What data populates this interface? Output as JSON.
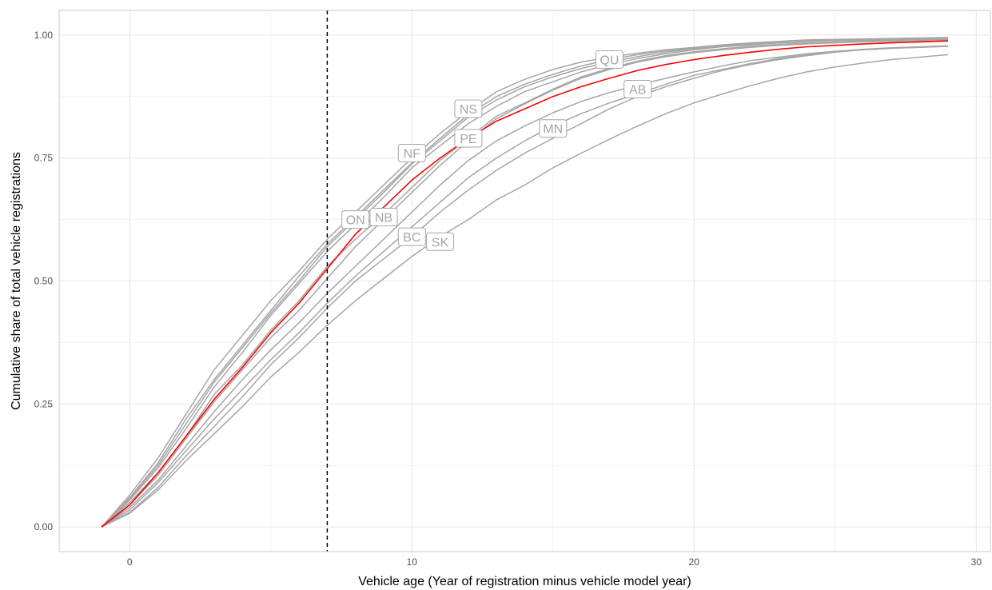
{
  "chart_data": {
    "type": "line",
    "xlabel": "Vehicle age (Year of registration minus vehicle model year)",
    "ylabel": "Cumulative share of total vehicle registrations",
    "xlim": [
      -2.5,
      30.5
    ],
    "ylim": [
      -0.05,
      1.05
    ],
    "x_ticks": [
      0,
      10,
      20,
      30
    ],
    "y_ticks": [
      0.0,
      0.25,
      0.5,
      0.75,
      1.0
    ],
    "x_tick_labels": [
      "0",
      "10",
      "20",
      "30"
    ],
    "y_tick_labels": [
      "0.00",
      "0.25",
      "0.50",
      "0.75",
      "1.00"
    ],
    "grid": true,
    "vline": {
      "x": 7,
      "style": "dashed",
      "color": "#000000"
    },
    "colors": {
      "provinces": "#a6a6a6",
      "highlight": "#ff0000"
    },
    "x": [
      -1,
      0,
      1,
      2,
      3,
      4,
      5,
      6,
      7,
      8,
      9,
      10,
      11,
      12,
      13,
      14,
      15,
      16,
      17,
      18,
      19,
      20,
      21,
      22,
      23,
      24,
      25,
      26,
      27,
      28,
      29
    ],
    "series": [
      {
        "label": "QU",
        "label_at": [
          17,
          0.95
        ],
        "values": [
          0,
          0.065,
          0.14,
          0.23,
          0.32,
          0.39,
          0.46,
          0.52,
          0.585,
          0.64,
          0.695,
          0.75,
          0.8,
          0.845,
          0.885,
          0.91,
          0.93,
          0.945,
          0.955,
          0.963,
          0.97,
          0.975,
          0.98,
          0.984,
          0.987,
          0.99,
          0.991,
          0.992,
          0.993,
          0.994,
          0.995
        ]
      },
      {
        "label": "NS",
        "label_at": [
          12,
          0.85
        ],
        "values": [
          0,
          0.06,
          0.13,
          0.22,
          0.3,
          0.37,
          0.44,
          0.51,
          0.575,
          0.63,
          0.685,
          0.74,
          0.79,
          0.838,
          0.875,
          0.9,
          0.92,
          0.937,
          0.95,
          0.96,
          0.968,
          0.974,
          0.979,
          0.983,
          0.986,
          0.988,
          0.99,
          0.991,
          0.992,
          0.993,
          0.994
        ]
      },
      {
        "label": "NF",
        "label_at": [
          10,
          0.76
        ],
        "values": [
          0,
          0.058,
          0.125,
          0.21,
          0.295,
          0.365,
          0.435,
          0.5,
          0.57,
          0.625,
          0.68,
          0.738,
          0.785,
          0.833,
          0.868,
          0.895,
          0.915,
          0.932,
          0.945,
          0.956,
          0.965,
          0.972,
          0.977,
          0.981,
          0.984,
          0.987,
          0.989,
          0.99,
          0.991,
          0.992,
          0.993
        ]
      },
      {
        "label": "ON",
        "label_at": [
          8,
          0.625
        ],
        "values": [
          0,
          0.055,
          0.12,
          0.2,
          0.285,
          0.355,
          0.43,
          0.495,
          0.56,
          0.615,
          0.67,
          0.73,
          0.775,
          0.82,
          0.855,
          0.885,
          0.905,
          0.925,
          0.94,
          0.952,
          0.962,
          0.97,
          0.976,
          0.98,
          0.984,
          0.987,
          0.989,
          0.99,
          0.991,
          0.992,
          0.993
        ]
      },
      {
        "label": "PE",
        "label_at": [
          12,
          0.79
        ],
        "values": [
          0,
          0.05,
          0.11,
          0.185,
          0.27,
          0.33,
          0.4,
          0.46,
          0.53,
          0.585,
          0.635,
          0.69,
          0.745,
          0.79,
          0.835,
          0.862,
          0.89,
          0.915,
          0.932,
          0.947,
          0.958,
          0.966,
          0.972,
          0.977,
          0.981,
          0.984,
          0.986,
          0.988,
          0.989,
          0.99,
          0.991
        ]
      },
      {
        "label": "NB",
        "label_at": [
          9,
          0.63
        ],
        "values": [
          0,
          0.045,
          0.105,
          0.18,
          0.255,
          0.32,
          0.385,
          0.44,
          0.505,
          0.57,
          0.625,
          0.68,
          0.735,
          0.785,
          0.83,
          0.86,
          0.888,
          0.912,
          0.93,
          0.945,
          0.956,
          0.964,
          0.97,
          0.975,
          0.979,
          0.982,
          0.984,
          0.986,
          0.987,
          0.988,
          0.989
        ]
      },
      {
        "label": "AB",
        "label_at": [
          18,
          0.89
        ],
        "values": [
          0,
          0.04,
          0.095,
          0.165,
          0.235,
          0.3,
          0.36,
          0.415,
          0.475,
          0.53,
          0.585,
          0.64,
          0.695,
          0.745,
          0.785,
          0.815,
          0.842,
          0.865,
          0.883,
          0.898,
          0.912,
          0.925,
          0.937,
          0.948,
          0.955,
          0.962,
          0.967,
          0.971,
          0.974,
          0.976,
          0.978
        ]
      },
      {
        "label": "MN",
        "label_at": [
          15,
          0.81
        ],
        "values": [
          0,
          0.035,
          0.09,
          0.155,
          0.22,
          0.28,
          0.34,
          0.395,
          0.455,
          0.51,
          0.56,
          0.61,
          0.66,
          0.71,
          0.75,
          0.785,
          0.815,
          0.84,
          0.862,
          0.88,
          0.9,
          0.918,
          0.93,
          0.942,
          0.952,
          0.96,
          0.966,
          0.97,
          0.973,
          0.975,
          0.977
        ]
      },
      {
        "label": "BC",
        "label_at": [
          10,
          0.59
        ],
        "values": [
          0,
          0.03,
          0.08,
          0.145,
          0.205,
          0.265,
          0.33,
          0.385,
          0.445,
          0.5,
          0.545,
          0.59,
          0.64,
          0.685,
          0.725,
          0.76,
          0.79,
          0.82,
          0.85,
          0.875,
          0.895,
          0.912,
          0.928,
          0.94,
          0.95,
          0.958,
          0.965,
          0.97,
          0.973,
          0.975,
          0.977
        ]
      },
      {
        "label": "SK",
        "label_at": [
          11,
          0.58
        ],
        "values": [
          0,
          0.028,
          0.075,
          0.135,
          0.19,
          0.245,
          0.305,
          0.355,
          0.41,
          0.46,
          0.505,
          0.55,
          0.59,
          0.625,
          0.665,
          0.695,
          0.73,
          0.76,
          0.788,
          0.815,
          0.84,
          0.862,
          0.88,
          0.897,
          0.912,
          0.925,
          0.935,
          0.943,
          0.95,
          0.955,
          0.96
        ]
      },
      {
        "label": "",
        "highlight": true,
        "values": [
          0,
          0.045,
          0.11,
          0.185,
          0.26,
          0.325,
          0.395,
          0.455,
          0.525,
          0.595,
          0.65,
          0.705,
          0.75,
          0.79,
          0.825,
          0.85,
          0.875,
          0.895,
          0.912,
          0.928,
          0.94,
          0.95,
          0.958,
          0.965,
          0.971,
          0.976,
          0.979,
          0.982,
          0.984,
          0.986,
          0.988
        ]
      }
    ]
  }
}
